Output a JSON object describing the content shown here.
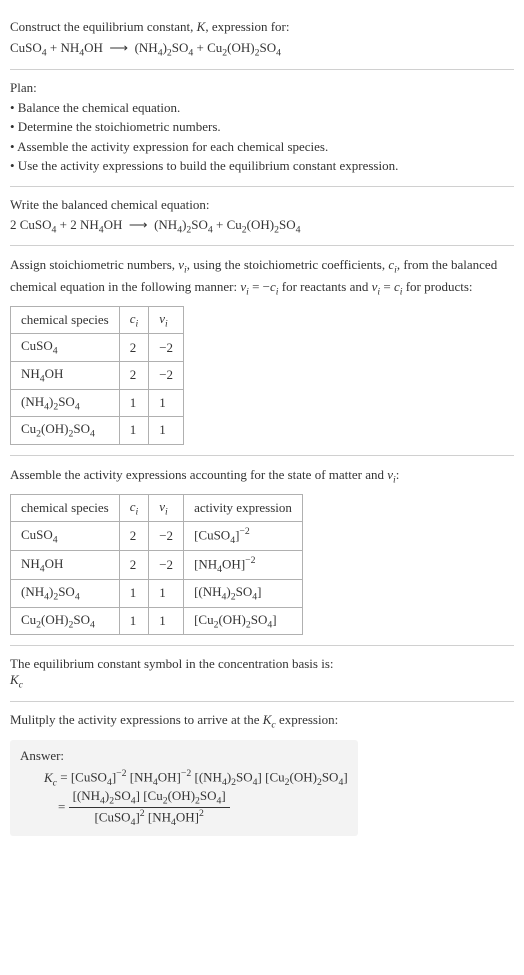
{
  "header": {
    "line1": "Construct the equilibrium constant, K, expression for:",
    "equation": "CuSO₄ + NH₄OH ⟶ (NH₄)₂SO₄ + Cu₂(OH)₂SO₄"
  },
  "plan": {
    "title": "Plan:",
    "items": [
      "• Balance the chemical equation.",
      "• Determine the stoichiometric numbers.",
      "• Assemble the activity expression for each chemical species.",
      "• Use the activity expressions to build the equilibrium constant expression."
    ]
  },
  "balanced": {
    "title": "Write the balanced chemical equation:",
    "equation": "2 CuSO₄ + 2 NH₄OH ⟶ (NH₄)₂SO₄ + Cu₂(OH)₂SO₄"
  },
  "stoich": {
    "text": "Assign stoichiometric numbers, νᵢ, using the stoichiometric coefficients, cᵢ, from the balanced chemical equation in the following manner: νᵢ = −cᵢ for reactants and νᵢ = cᵢ for products:",
    "headers": [
      "chemical species",
      "cᵢ",
      "νᵢ"
    ],
    "rows": [
      {
        "species": "CuSO₄",
        "c": "2",
        "v": "−2"
      },
      {
        "species": "NH₄OH",
        "c": "2",
        "v": "−2"
      },
      {
        "species": "(NH₄)₂SO₄",
        "c": "1",
        "v": "1"
      },
      {
        "species": "Cu₂(OH)₂SO₄",
        "c": "1",
        "v": "1"
      }
    ]
  },
  "activity": {
    "text": "Assemble the activity expressions accounting for the state of matter and νᵢ:",
    "headers": [
      "chemical species",
      "cᵢ",
      "νᵢ",
      "activity expression"
    ],
    "rows": [
      {
        "species": "CuSO₄",
        "c": "2",
        "v": "−2",
        "expr": "[CuSO₄]⁻²"
      },
      {
        "species": "NH₄OH",
        "c": "2",
        "v": "−2",
        "expr": "[NH₄OH]⁻²"
      },
      {
        "species": "(NH₄)₂SO₄",
        "c": "1",
        "v": "1",
        "expr": "[(NH₄)₂SO₄]"
      },
      {
        "species": "Cu₂(OH)₂SO₄",
        "c": "1",
        "v": "1",
        "expr": "[Cu₂(OH)₂SO₄]"
      }
    ]
  },
  "kc_symbol": {
    "line1": "The equilibrium constant symbol in the concentration basis is:",
    "line2": "K꜀"
  },
  "final": {
    "title": "Mulitply the activity expressions to arrive at the K꜀ expression:",
    "answer_label": "Answer:",
    "kc_eq": "K꜀ = [CuSO₄]⁻² [NH₄OH]⁻² [(NH₄)₂SO₄] [Cu₂(OH)₂SO₄]",
    "frac_num": "[(NH₄)₂SO₄] [Cu₂(OH)₂SO₄]",
    "frac_den": "[CuSO₄]² [NH₄OH]²"
  }
}
